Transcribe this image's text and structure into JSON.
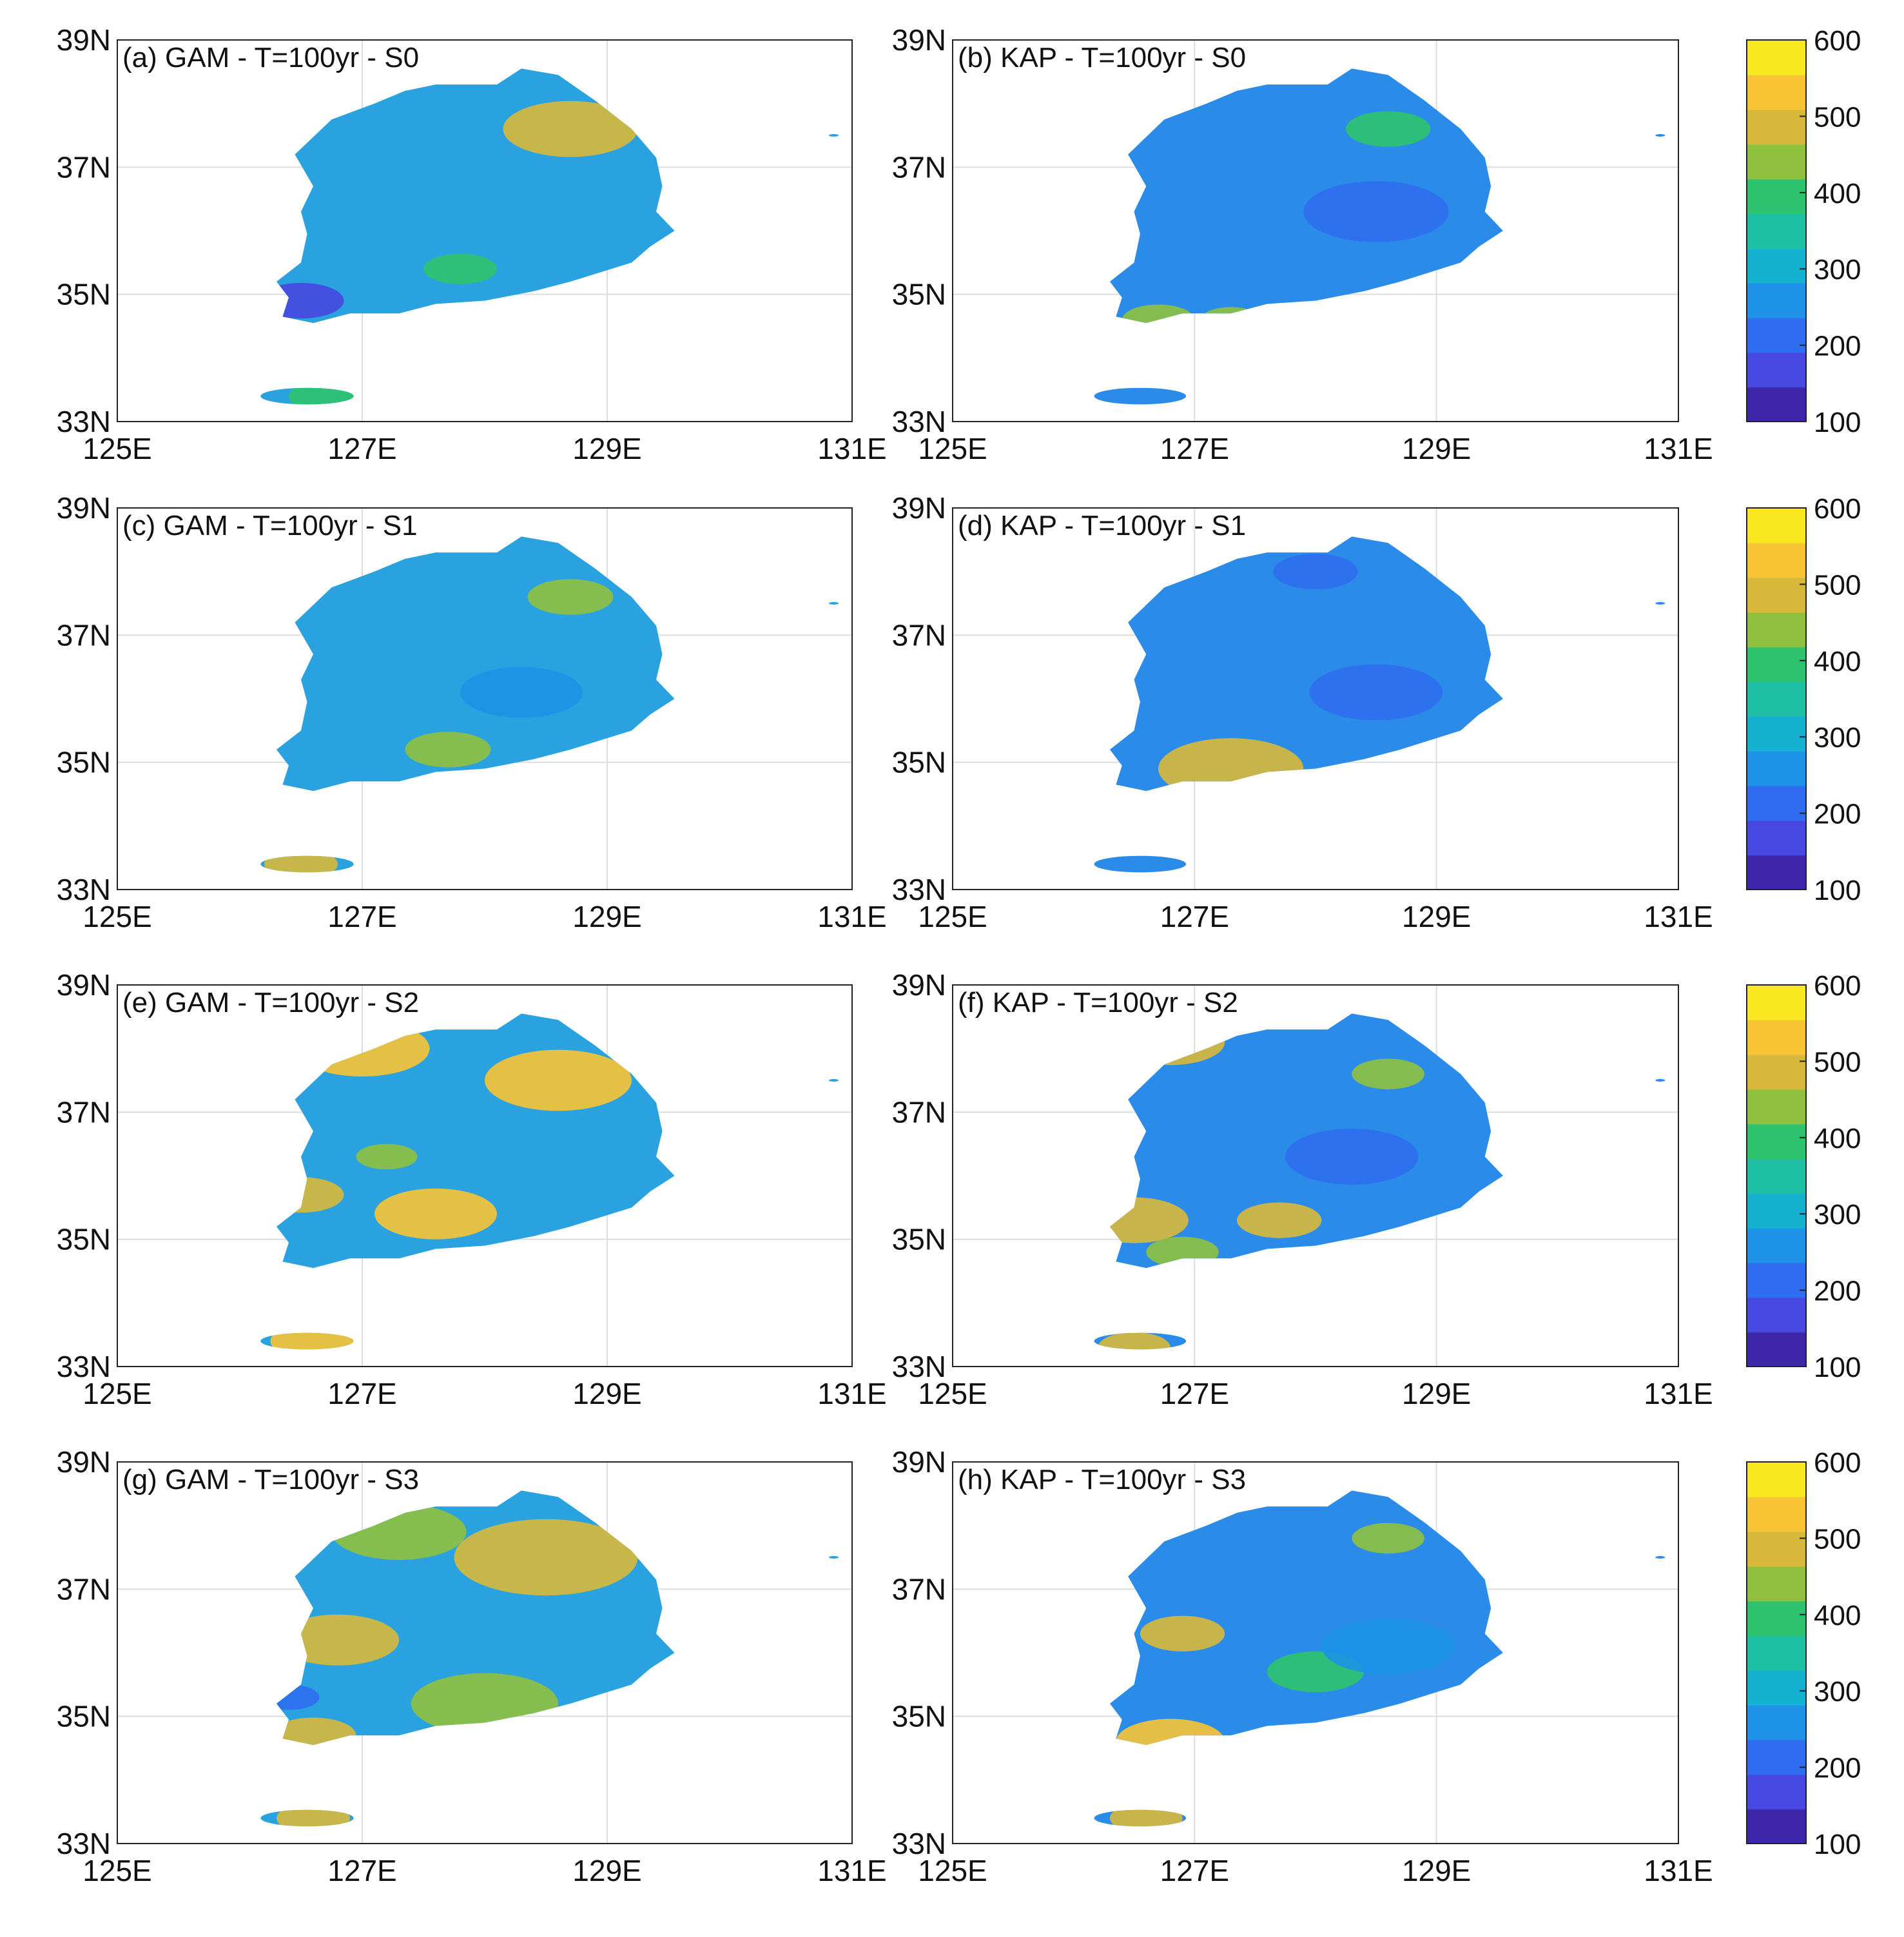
{
  "figure": {
    "lat_ticks": [
      "39N",
      "37N",
      "35N",
      "33N"
    ],
    "lon_ticks": [
      "125E",
      "127E",
      "129E",
      "131E"
    ],
    "lat_values": [
      39,
      37,
      35,
      33
    ],
    "lon_values": [
      125,
      127,
      129,
      131
    ],
    "colorbar_ticks": [
      "600",
      "500",
      "400",
      "300",
      "200",
      "100"
    ],
    "colorbar_values": [
      600,
      500,
      400,
      300,
      200,
      100
    ],
    "colorbar_range": [
      100,
      600
    ],
    "colormap": [
      "#3e26a8",
      "#4748e0",
      "#2f6ef0",
      "#1d92e6",
      "#15b1d0",
      "#1fbfa5",
      "#2ec36e",
      "#8fc13e",
      "#d8b83a",
      "#f8c334",
      "#f9e81f"
    ]
  },
  "panels": [
    {
      "label": "(a) GAM - T=100yr - S0",
      "model": "GAM",
      "scenario": "S0",
      "blobs": [
        {
          "lon": 128.7,
          "lat": 37.6,
          "v": 500,
          "r": 0.55
        },
        {
          "lon": 126.5,
          "lat": 34.9,
          "v": 150,
          "r": 0.35
        },
        {
          "lon": 127.8,
          "lat": 35.4,
          "v": 400,
          "r": 0.3
        },
        {
          "lon": 126.7,
          "lat": 33.4,
          "v": 380,
          "r": 0.3
        }
      ]
    },
    {
      "label": "(b) KAP - T=100yr - S0",
      "model": "KAP",
      "scenario": "S0",
      "blobs": [
        {
          "lon": 128.5,
          "lat": 36.3,
          "v": 200,
          "r": 0.6
        },
        {
          "lon": 126.7,
          "lat": 34.6,
          "v": 470,
          "r": 0.3
        },
        {
          "lon": 127.3,
          "lat": 34.6,
          "v": 470,
          "r": 0.25
        },
        {
          "lon": 128.6,
          "lat": 37.6,
          "v": 380,
          "r": 0.35
        }
      ]
    },
    {
      "label": "(c) GAM - T=100yr - S1",
      "model": "GAM",
      "scenario": "S1",
      "blobs": [
        {
          "lon": 128.7,
          "lat": 37.6,
          "v": 430,
          "r": 0.35
        },
        {
          "lon": 127.7,
          "lat": 35.2,
          "v": 470,
          "r": 0.35
        },
        {
          "lon": 128.3,
          "lat": 36.1,
          "v": 230,
          "r": 0.5
        },
        {
          "lon": 126.5,
          "lat": 33.4,
          "v": 480,
          "r": 0.3
        }
      ]
    },
    {
      "label": "(d) KAP - T=100yr - S1",
      "model": "KAP",
      "scenario": "S1",
      "blobs": [
        {
          "lon": 127.3,
          "lat": 34.9,
          "v": 510,
          "r": 0.6
        },
        {
          "lon": 128.5,
          "lat": 36.1,
          "v": 180,
          "r": 0.55
        },
        {
          "lon": 128.0,
          "lat": 38.0,
          "v": 200,
          "r": 0.35
        }
      ]
    },
    {
      "label": "(e) GAM - T=100yr - S2",
      "model": "GAM",
      "scenario": "S2",
      "blobs": [
        {
          "lon": 127.0,
          "lat": 38.0,
          "v": 540,
          "r": 0.55
        },
        {
          "lon": 128.6,
          "lat": 37.5,
          "v": 540,
          "r": 0.6
        },
        {
          "lon": 127.6,
          "lat": 35.4,
          "v": 540,
          "r": 0.5
        },
        {
          "lon": 126.5,
          "lat": 35.7,
          "v": 490,
          "r": 0.35
        },
        {
          "lon": 126.6,
          "lat": 33.4,
          "v": 560,
          "r": 0.35
        },
        {
          "lon": 127.2,
          "lat": 36.3,
          "v": 430,
          "r": 0.25
        }
      ]
    },
    {
      "label": "(f) KAP - T=100yr - S2",
      "model": "KAP",
      "scenario": "S2",
      "blobs": [
        {
          "lon": 126.8,
          "lat": 38.1,
          "v": 520,
          "r": 0.45
        },
        {
          "lon": 126.5,
          "lat": 35.3,
          "v": 490,
          "r": 0.45
        },
        {
          "lon": 127.7,
          "lat": 35.3,
          "v": 510,
          "r": 0.35
        },
        {
          "lon": 126.9,
          "lat": 34.8,
          "v": 470,
          "r": 0.3
        },
        {
          "lon": 128.6,
          "lat": 37.6,
          "v": 430,
          "r": 0.3
        },
        {
          "lon": 128.3,
          "lat": 36.3,
          "v": 220,
          "r": 0.55
        },
        {
          "lon": 126.5,
          "lat": 33.3,
          "v": 480,
          "r": 0.3
        }
      ]
    },
    {
      "label": "(g) GAM - T=100yr - S3",
      "model": "GAM",
      "scenario": "S3",
      "blobs": [
        {
          "lon": 128.5,
          "lat": 37.5,
          "v": 520,
          "r": 0.75
        },
        {
          "lon": 127.3,
          "lat": 37.9,
          "v": 470,
          "r": 0.55
        },
        {
          "lon": 126.8,
          "lat": 36.2,
          "v": 480,
          "r": 0.5
        },
        {
          "lon": 128.0,
          "lat": 35.2,
          "v": 470,
          "r": 0.6
        },
        {
          "lon": 126.6,
          "lat": 34.7,
          "v": 500,
          "r": 0.35
        },
        {
          "lon": 126.6,
          "lat": 33.4,
          "v": 500,
          "r": 0.3
        },
        {
          "lon": 126.4,
          "lat": 35.3,
          "v": 200,
          "r": 0.25
        }
      ]
    },
    {
      "label": "(h) KAP - T=100yr - S3",
      "model": "KAP",
      "scenario": "S3",
      "blobs": [
        {
          "lon": 126.8,
          "lat": 34.6,
          "v": 540,
          "r": 0.45
        },
        {
          "lon": 126.9,
          "lat": 36.3,
          "v": 490,
          "r": 0.35
        },
        {
          "lon": 128.6,
          "lat": 37.8,
          "v": 440,
          "r": 0.3
        },
        {
          "lon": 128.0,
          "lat": 35.7,
          "v": 380,
          "r": 0.4
        },
        {
          "lon": 126.6,
          "lat": 33.4,
          "v": 510,
          "r": 0.3
        },
        {
          "lon": 128.6,
          "lat": 36.1,
          "v": 260,
          "r": 0.55
        }
      ]
    }
  ]
}
